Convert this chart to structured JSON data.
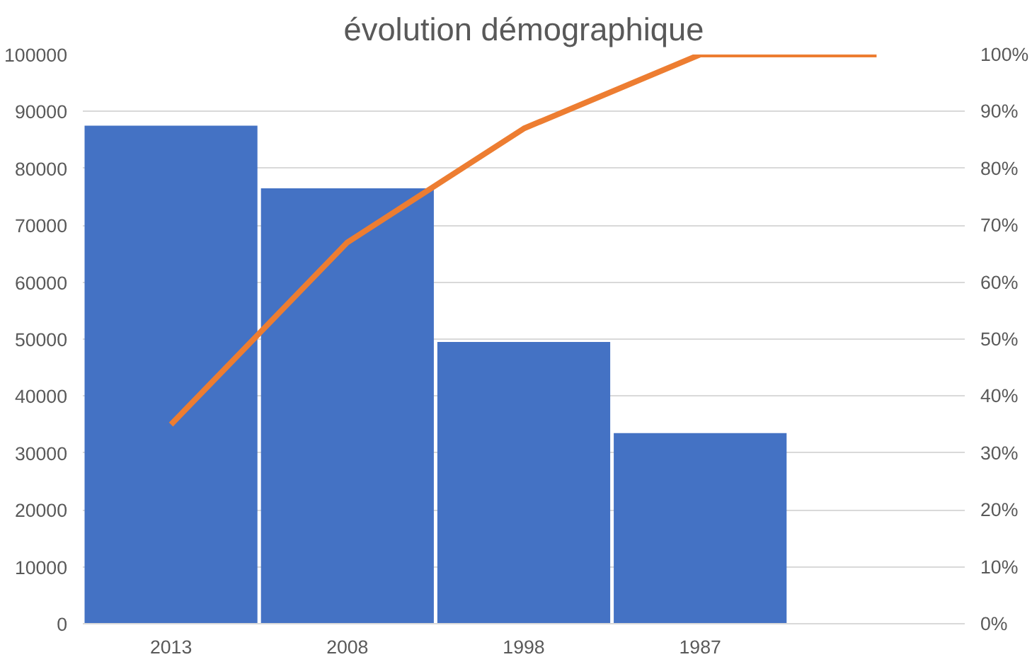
{
  "chart_data": {
    "type": "bar",
    "title": "évolution démographique",
    "categories": [
      "2013",
      "2008",
      "1998",
      "1987",
      null
    ],
    "series": [
      {
        "color": "#4472c4",
        "values": [
          87500,
          76500,
          49500,
          33500,
          null
        ]
      },
      {
        "type": "line",
        "color": "#ed7d31",
        "axis": "y2",
        "values": [
          35,
          67,
          87,
          100,
          100
        ]
      }
    ],
    "ylim": [
      0,
      100000
    ],
    "yticks": [
      0,
      10000,
      20000,
      30000,
      40000,
      50000,
      60000,
      70000,
      80000,
      90000,
      100000
    ],
    "y2lim": [
      0,
      100
    ],
    "y2ticks": [
      {
        "value": 0,
        "label": "0%"
      },
      {
        "value": 10,
        "label": "10%"
      },
      {
        "value": 20,
        "label": "20%"
      },
      {
        "value": 30,
        "label": "30%"
      },
      {
        "value": 40,
        "label": "40%"
      },
      {
        "value": 50,
        "label": "50%"
      },
      {
        "value": 60,
        "label": "60%"
      },
      {
        "value": 70,
        "label": "70%"
      },
      {
        "value": 80,
        "label": "80%"
      },
      {
        "value": 90,
        "label": "90%"
      },
      {
        "value": 100,
        "label": "100%"
      }
    ],
    "grid": "y"
  }
}
